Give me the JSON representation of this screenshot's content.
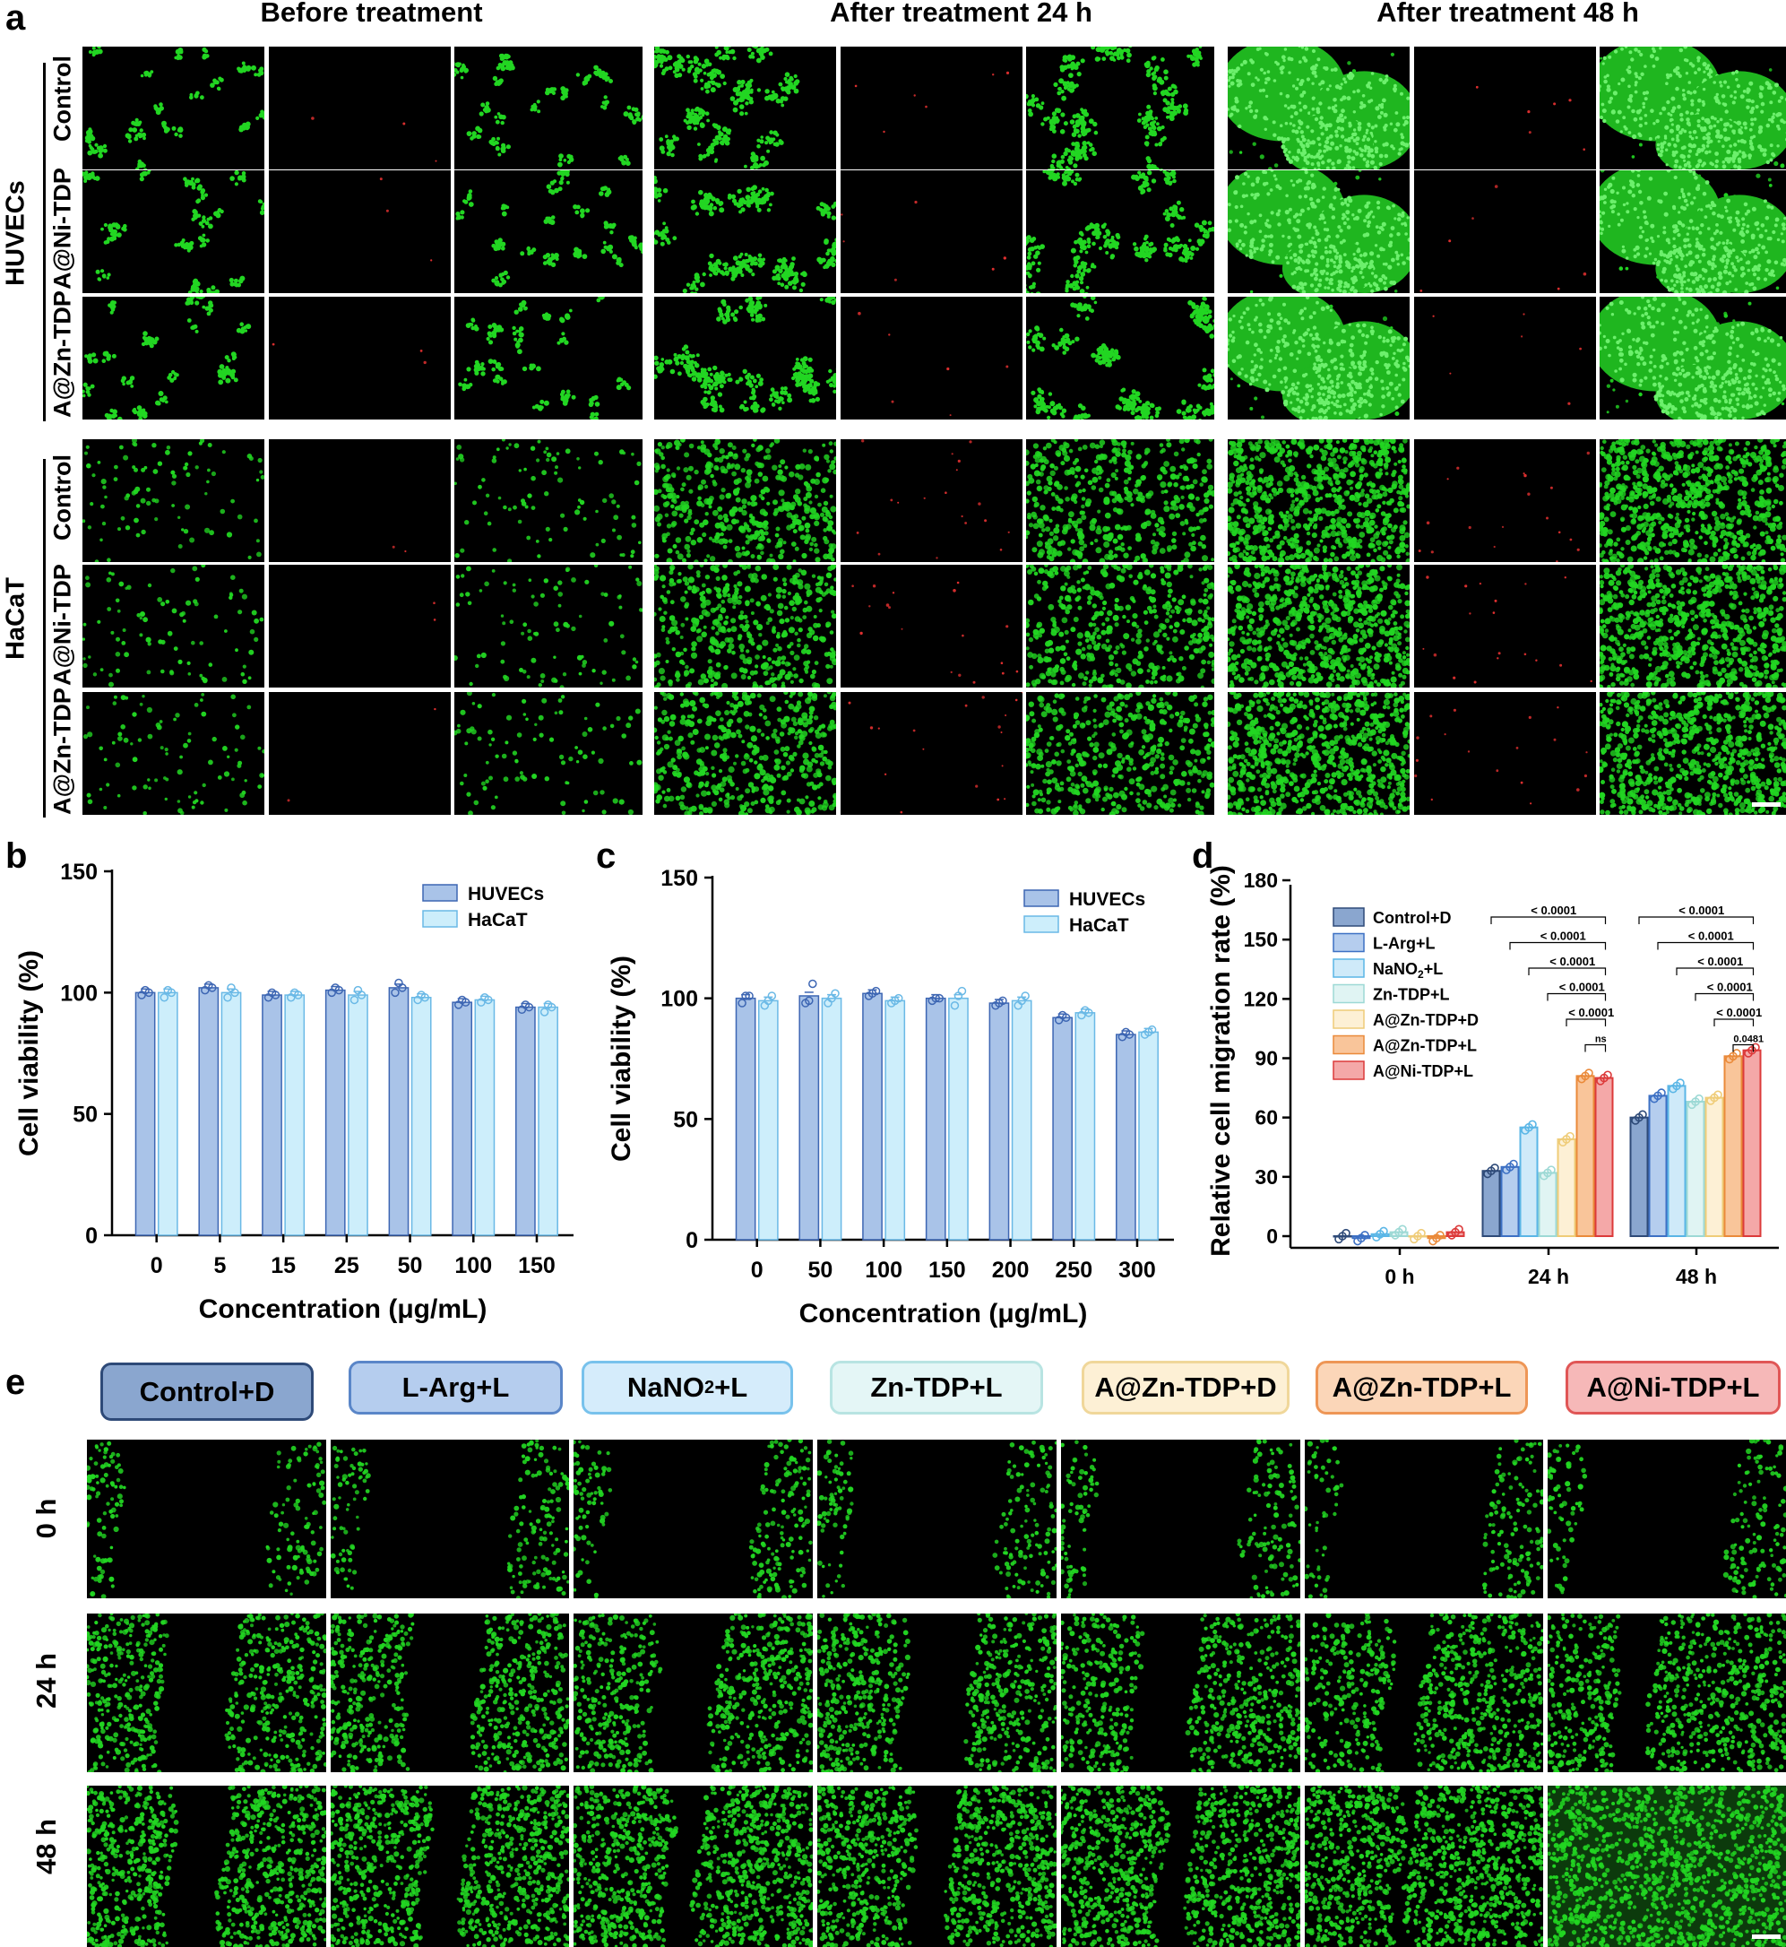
{
  "panel_letters": [
    "a",
    "b",
    "c",
    "d",
    "e"
  ],
  "panel_a": {
    "column_headers": [
      "Before treatment",
      "After treatment 24 h",
      "After treatment 48 h"
    ],
    "cell_lines": [
      "HUVECs",
      "HaCaT"
    ],
    "row_labels": [
      "Control",
      "A@Ni-TDP",
      "A@Zn-TDP"
    ]
  },
  "panel_e": {
    "groups": [
      {
        "label": "Control+D",
        "bg": "#8aa6cf",
        "border": "#2e4a78"
      },
      {
        "label": "L-Arg+L",
        "bg": "#b5cdee",
        "border": "#5a86c8"
      },
      {
        "label": "NaNO",
        "sub": "2",
        "tail": "+L",
        "bg": "#d5ecfb",
        "border": "#78c2ec"
      },
      {
        "label": "Zn-TDP+L",
        "bg": "#e4f6f6",
        "border": "#b8e4e2"
      },
      {
        "label": "A@Zn-TDP+D",
        "bg": "#fdf0d5",
        "border": "#f0d79a"
      },
      {
        "label": "A@Zn-TDP+L",
        "bg": "#fbd6b8",
        "border": "#ee9656"
      },
      {
        "label": "A@Ni-TDP+L",
        "bg": "#f6b8b8",
        "border": "#e05656"
      }
    ],
    "time_labels": [
      "0 h",
      "24 h",
      "48 h"
    ]
  },
  "chart_data": [
    {
      "id": "b",
      "type": "bar",
      "ylabel": "Cell viability (%)",
      "xlabel": "Concentration (μg/mL)",
      "categories": [
        "0",
        "5",
        "15",
        "25",
        "50",
        "100",
        "150"
      ],
      "ylim": [
        0,
        150
      ],
      "yticks": [
        "0",
        "50",
        "100",
        "150"
      ],
      "legend": "top-right",
      "series": [
        {
          "name": "HUVECs",
          "color": "#a9c3e8",
          "edge": "#3d66b3",
          "values": [
            100,
            102,
            99,
            101,
            102,
            96,
            94
          ],
          "points": [
            [
              99,
              101,
              100
            ],
            [
              101,
              103,
              102
            ],
            [
              98,
              100,
              99
            ],
            [
              100,
              102,
              101
            ],
            [
              100,
              104,
              102
            ],
            [
              95,
              97,
              96
            ],
            [
              93,
              95,
              94
            ]
          ]
        },
        {
          "name": "HaCaT",
          "color": "#cdeefb",
          "edge": "#6ab9e6",
          "values": [
            100,
            100,
            99,
            99,
            98,
            97,
            94
          ],
          "points": [
            [
              98,
              101,
              100
            ],
            [
              98,
              102,
              100
            ],
            [
              98,
              100,
              99
            ],
            [
              97,
              101,
              99
            ],
            [
              97,
              99,
              98
            ],
            [
              96,
              98,
              97
            ],
            [
              92,
              95,
              94
            ]
          ]
        }
      ]
    },
    {
      "id": "c",
      "type": "bar",
      "ylabel": "Cell viability (%)",
      "xlabel": "Concentration (μg/mL)",
      "categories": [
        "0",
        "50",
        "100",
        "150",
        "200",
        "250",
        "300"
      ],
      "ylim": [
        0,
        150
      ],
      "yticks": [
        "0",
        "50",
        "100",
        "150"
      ],
      "legend": "top-right",
      "series": [
        {
          "name": "HUVECs",
          "color": "#a9c3e8",
          "edge": "#3d66b3",
          "values": [
            100,
            101,
            102,
            100,
            98,
            92,
            85
          ],
          "points": [
            [
              98,
              101,
              101
            ],
            [
              98,
              99,
              106
            ],
            [
              101,
              102,
              103
            ],
            [
              99,
              100,
              100
            ],
            [
              97,
              98,
              99
            ],
            [
              91,
              93,
              92
            ],
            [
              84,
              86,
              85
            ]
          ]
        },
        {
          "name": "HaCaT",
          "color": "#cdeefb",
          "edge": "#6ab9e6",
          "values": [
            99,
            100,
            99,
            100,
            99,
            94,
            86
          ],
          "points": [
            [
              97,
              99,
              101
            ],
            [
              98,
              100,
              102
            ],
            [
              98,
              99,
              100
            ],
            [
              97,
              101,
              103
            ],
            [
              97,
              99,
              101
            ],
            [
              93,
              95,
              94
            ],
            [
              85,
              86,
              87
            ]
          ]
        }
      ]
    },
    {
      "id": "d",
      "type": "bar",
      "ylabel": "Relative cell migration rate (%)",
      "categories": [
        "0 h",
        "24 h",
        "48 h"
      ],
      "ylim": [
        0,
        180
      ],
      "yticks": [
        "0",
        "30",
        "60",
        "90",
        "120",
        "150",
        "180"
      ],
      "legend": "top-left",
      "series": [
        {
          "name": "Control+D",
          "color": "#8aa6cf",
          "edge": "#2e4a78",
          "values": [
            0,
            33,
            60
          ]
        },
        {
          "name": "L-Arg+L",
          "color": "#b5cdee",
          "edge": "#3d70c4",
          "values": [
            -1,
            35,
            71
          ]
        },
        {
          "name": "NaNO2+L",
          "color": "#cfeaf9",
          "edge": "#5ab6e6",
          "values": [
            1,
            55,
            76
          ]
        },
        {
          "name": "Zn-TDP+L",
          "color": "#e0f4f3",
          "edge": "#9dd9d5",
          "values": [
            2,
            32,
            68
          ]
        },
        {
          "name": "A@Zn-TDP+D",
          "color": "#fdf0d5",
          "edge": "#efcc78",
          "values": [
            0,
            49,
            70
          ]
        },
        {
          "name": "A@Zn-TDP+L",
          "color": "#f9c59a",
          "edge": "#ea8a3a",
          "values": [
            -1,
            81,
            91
          ]
        },
        {
          "name": "A@Ni-TDP+L",
          "color": "#f4a8a8",
          "edge": "#dc3a3a",
          "values": [
            2,
            80,
            94
          ]
        }
      ],
      "significance_24h": [
        "< 0.0001",
        "< 0.0001",
        "< 0.0001",
        "< 0.0001",
        "< 0.0001",
        "ns"
      ],
      "significance_48h": [
        "< 0.0001",
        "< 0.0001",
        "< 0.0001",
        "< 0.0001",
        "< 0.0001",
        "0.0481"
      ]
    }
  ]
}
